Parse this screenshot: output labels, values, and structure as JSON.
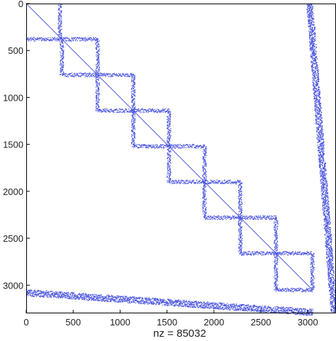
{
  "chart_data": {
    "type": "scatter",
    "subtype": "sparsity-pattern",
    "title": "",
    "xlabel": "nz  = 85032",
    "ylabel": "",
    "nz": 85032,
    "xlim": [
      0,
      3300
    ],
    "ylim": [
      3300,
      0
    ],
    "y_axis_inverted": true,
    "grid": false,
    "marker_color": "#4b55e0",
    "x_ticks": [
      0,
      500,
      1000,
      1500,
      2000,
      2500,
      3000
    ],
    "x_tick_labels": [
      "0",
      "500",
      "1000",
      "1500",
      "2000",
      "2500",
      "3000"
    ],
    "y_ticks": [
      0,
      500,
      1000,
      1500,
      2000,
      2500,
      3000
    ],
    "y_tick_labels": [
      "0",
      "500",
      "1000",
      "1500",
      "2000",
      "2500",
      "3000"
    ],
    "diagonal": {
      "from": 0,
      "to": 3050
    },
    "block_boundaries": [
      0,
      380,
      760,
      1140,
      1520,
      1900,
      2280,
      2660,
      3050
    ],
    "lower_band": {
      "x_from": 0,
      "x_to": 3050,
      "y_start": 3080,
      "y_end": 3290
    },
    "right_band": {
      "y_from": 0,
      "y_to": 3290,
      "x_start": 3020,
      "x_end": 3280
    }
  }
}
